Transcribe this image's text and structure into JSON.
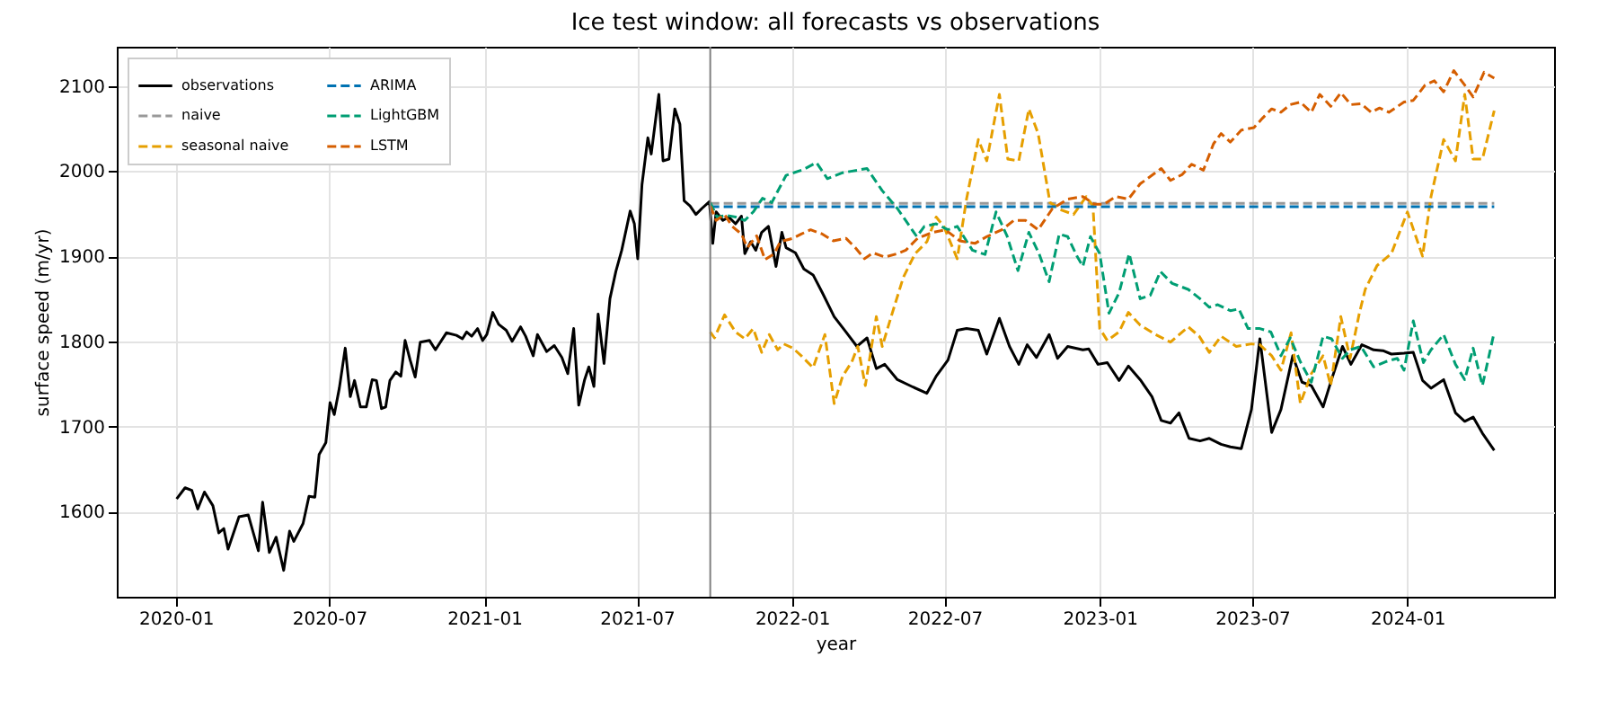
{
  "chart_data": {
    "type": "line",
    "title": "Ice test window: all forecasts vs observations",
    "xlabel": "year",
    "ylabel": "surface speed (m/yr)",
    "xlim": [
      "2019-10-23",
      "2024-06-23"
    ],
    "ylim": [
      1500,
      2146
    ],
    "xticks": [
      "2020-01",
      "2020-07",
      "2021-01",
      "2021-07",
      "2022-01",
      "2022-07",
      "2023-01",
      "2023-07",
      "2024-01"
    ],
    "yticks": [
      1600,
      1700,
      1800,
      1900,
      2000,
      2100
    ],
    "grid": true,
    "legend": "top left",
    "ref_lines": [
      {
        "axis": "x",
        "value": "2021-09-26",
        "label": null,
        "color": "#808080",
        "line_style": "solid"
      }
    ],
    "series": [
      {
        "name": "observations",
        "color": "#000000",
        "type": "line",
        "line_style": "solid",
        "x": [
          "2020-01-02",
          "2020-01-12",
          "2020-01-20",
          "2020-01-27",
          "2020-02-04",
          "2020-02-14",
          "2020-02-21",
          "2020-02-27",
          "2020-03-03",
          "2020-03-16",
          "2020-03-27",
          "2020-04-08",
          "2020-04-13",
          "2020-04-21",
          "2020-04-29",
          "2020-05-08",
          "2020-05-15",
          "2020-05-20",
          "2020-05-31",
          "2020-06-07",
          "2020-06-14",
          "2020-06-19",
          "2020-06-27",
          "2020-07-02",
          "2020-07-07",
          "2020-07-13",
          "2020-07-20",
          "2020-07-26",
          "2020-07-31",
          "2020-08-07",
          "2020-08-14",
          "2020-08-21",
          "2020-08-26",
          "2020-09-01",
          "2020-09-06",
          "2020-09-11",
          "2020-09-18",
          "2020-09-24",
          "2020-09-29",
          "2020-10-05",
          "2020-10-11",
          "2020-10-17",
          "2020-10-28",
          "2020-11-04",
          "2020-11-17",
          "2020-11-29",
          "2020-12-06",
          "2020-12-11",
          "2020-12-17",
          "2020-12-24",
          "2020-12-30",
          "2021-01-04",
          "2021-01-11",
          "2021-01-18",
          "2021-01-27",
          "2021-02-03",
          "2021-02-13",
          "2021-02-19",
          "2021-02-28",
          "2021-03-05",
          "2021-03-16",
          "2021-03-25",
          "2021-04-03",
          "2021-04-10",
          "2021-04-17",
          "2021-04-23",
          "2021-04-30",
          "2021-05-05",
          "2021-05-11",
          "2021-05-16",
          "2021-05-23",
          "2021-05-30",
          "2021-06-06",
          "2021-06-13",
          "2021-06-23",
          "2021-06-28",
          "2021-07-02",
          "2021-07-07",
          "2021-07-14",
          "2021-07-18",
          "2021-07-27",
          "2021-08-01",
          "2021-08-08",
          "2021-08-15",
          "2021-08-21",
          "2021-08-26",
          "2021-09-02",
          "2021-09-09",
          "2021-09-16",
          "2021-09-25",
          "2021-09-29",
          "2021-10-03",
          "2021-10-11",
          "2021-10-18",
          "2021-10-26",
          "2021-11-02",
          "2021-11-06",
          "2021-11-13",
          "2021-11-19",
          "2021-11-26",
          "2021-12-04",
          "2021-12-13",
          "2021-12-20",
          "2021-12-25",
          "2022-01-05",
          "2022-01-15",
          "2022-01-26",
          "2022-02-06",
          "2022-02-20",
          "2022-03-06",
          "2022-03-19",
          "2022-03-31",
          "2022-04-11",
          "2022-04-21",
          "2022-05-06",
          "2022-05-23",
          "2022-06-10",
          "2022-06-21",
          "2022-07-05",
          "2022-07-16",
          "2022-07-27",
          "2022-08-10",
          "2022-08-20",
          "2022-09-04",
          "2022-09-16",
          "2022-09-27",
          "2022-10-07",
          "2022-10-18",
          "2022-11-02",
          "2022-11-12",
          "2022-11-24",
          "2022-12-12",
          "2022-12-19",
          "2022-12-30",
          "2023-01-10",
          "2023-01-24",
          "2023-02-04",
          "2023-02-18",
          "2023-03-04",
          "2023-03-15",
          "2023-03-26",
          "2023-04-05",
          "2023-04-17",
          "2023-04-30",
          "2023-05-11",
          "2023-05-25",
          "2023-06-05",
          "2023-06-18",
          "2023-06-30",
          "2023-07-10",
          "2023-07-24",
          "2023-08-04",
          "2023-08-18",
          "2023-08-29",
          "2023-09-09",
          "2023-09-23",
          "2023-10-03",
          "2023-10-16",
          "2023-10-26",
          "2023-11-08",
          "2023-11-22",
          "2023-12-03",
          "2023-12-13",
          "2023-12-28",
          "2024-01-08",
          "2024-01-19",
          "2024-01-29",
          "2024-02-13",
          "2024-02-27",
          "2024-03-09",
          "2024-03-19",
          "2024-03-30",
          "2024-04-13"
        ],
        "values": [
          1615,
          1628,
          1625,
          1603,
          1623,
          1607,
          1575,
          1580,
          1556,
          1594,
          1596,
          1554,
          1611,
          1552,
          1570,
          1531,
          1577,
          1565,
          1586,
          1618,
          1617,
          1667,
          1681,
          1728,
          1714,
          1745,
          1792,
          1735,
          1754,
          1723,
          1723,
          1755,
          1754,
          1721,
          1723,
          1754,
          1764,
          1759,
          1801,
          1778,
          1758,
          1799,
          1801,
          1790,
          1810,
          1807,
          1803,
          1811,
          1806,
          1815,
          1801,
          1808,
          1834,
          1820,
          1813,
          1800,
          1817,
          1806,
          1783,
          1808,
          1788,
          1795,
          1781,
          1762,
          1815,
          1725,
          1755,
          1770,
          1747,
          1832,
          1774,
          1850,
          1882,
          1907,
          1953,
          1938,
          1897,
          1984,
          2039,
          2020,
          2090,
          2012,
          2014,
          2073,
          2055,
          1965,
          1959,
          1949,
          1956,
          1964,
          1915,
          1952,
          1942,
          1946,
          1938,
          1947,
          1903,
          1917,
          1907,
          1928,
          1935,
          1888,
          1928,
          1910,
          1904,
          1885,
          1878,
          1857,
          1829,
          1811,
          1794,
          1804,
          1768,
          1773,
          1755,
          1747,
          1739,
          1759,
          1778,
          1813,
          1815,
          1813,
          1785,
          1827,
          1794,
          1773,
          1796,
          1781,
          1808,
          1780,
          1794,
          1790,
          1791,
          1773,
          1775,
          1754,
          1771,
          1755,
          1735,
          1707,
          1704,
          1716,
          1686,
          1683,
          1686,
          1679,
          1676,
          1674,
          1720,
          1803,
          1693,
          1720,
          1783,
          1752,
          1748,
          1723,
          1755,
          1794,
          1773,
          1796,
          1790,
          1789,
          1785,
          1786,
          1787,
          1754,
          1745,
          1755,
          1716,
          1706,
          1711,
          1692,
          1672
        ]
      },
      {
        "name": "naive",
        "color": "#999999",
        "type": "line",
        "line_style": "dashed",
        "x": [
          "2021-09-26",
          "2024-04-13"
        ],
        "values": [
          1962,
          1962
        ]
      },
      {
        "name": "seasonal naive",
        "color": "#e69f00",
        "type": "line",
        "line_style": "dashed",
        "x": [
          "2021-09-26",
          "2021-10-01",
          "2021-10-13",
          "2021-10-26",
          "2021-11-06",
          "2021-11-16",
          "2021-11-26",
          "2021-12-05",
          "2021-12-15",
          "2021-12-22",
          "2022-01-02",
          "2022-01-12",
          "2022-01-26",
          "2022-02-09",
          "2022-02-20",
          "2022-03-02",
          "2022-03-13",
          "2022-03-20",
          "2022-03-29",
          "2022-04-11",
          "2022-04-18",
          "2022-04-28",
          "2022-05-13",
          "2022-05-27",
          "2022-06-10",
          "2022-06-21",
          "2022-06-30",
          "2022-07-16",
          "2022-07-27",
          "2022-08-10",
          "2022-08-20",
          "2022-09-04",
          "2022-09-14",
          "2022-09-27",
          "2022-10-09",
          "2022-10-20",
          "2022-11-03",
          "2022-11-17",
          "2022-12-01",
          "2022-12-16",
          "2022-12-24",
          "2023-01-01",
          "2023-01-10",
          "2023-01-24",
          "2023-02-04",
          "2023-02-18",
          "2023-03-08",
          "2023-03-26",
          "2023-04-16",
          "2023-04-29",
          "2023-05-11",
          "2023-05-25",
          "2023-06-12",
          "2023-06-30",
          "2023-07-10",
          "2023-07-24",
          "2023-08-04",
          "2023-08-16",
          "2023-08-27",
          "2023-09-09",
          "2023-09-23",
          "2023-10-02",
          "2023-10-14",
          "2023-10-25",
          "2023-11-05",
          "2023-11-12",
          "2023-11-26",
          "2023-12-13",
          "2024-01-01",
          "2024-01-19",
          "2024-01-29",
          "2024-02-13",
          "2024-02-27",
          "2024-03-09",
          "2024-03-19",
          "2024-03-30",
          "2024-04-13"
        ],
        "values": [
          1811,
          1804,
          1831,
          1811,
          1803,
          1815,
          1787,
          1808,
          1790,
          1797,
          1792,
          1783,
          1769,
          1808,
          1727,
          1759,
          1776,
          1794,
          1748,
          1829,
          1794,
          1827,
          1875,
          1903,
          1917,
          1946,
          1935,
          1897,
          1967,
          2037,
          2012,
          2090,
          2014,
          2012,
          2073,
          2044,
          1963,
          1954,
          1949,
          1970,
          1959,
          1815,
          1801,
          1811,
          1834,
          1819,
          1808,
          1799,
          1817,
          1806,
          1787,
          1806,
          1794,
          1797,
          1796,
          1783,
          1766,
          1810,
          1727,
          1762,
          1783,
          1748,
          1829,
          1780,
          1833,
          1861,
          1889,
          1903,
          1952,
          1900,
          1970,
          2037,
          2012,
          2090,
          2014,
          2014,
          2071
        ]
      },
      {
        "name": "ARIMA",
        "color": "#0072b2",
        "type": "line",
        "line_style": "dashed",
        "x": [
          "2021-09-26",
          "2024-04-13"
        ],
        "values": [
          1958,
          1958
        ]
      },
      {
        "name": "LightGBM",
        "color": "#009e73",
        "type": "line",
        "line_style": "dashed",
        "x": [
          "2021-09-26",
          "2021-10-04",
          "2021-10-15",
          "2021-10-26",
          "2021-11-06",
          "2021-11-16",
          "2021-11-27",
          "2021-12-08",
          "2021-12-25",
          "2022-01-15",
          "2022-01-30",
          "2022-02-12",
          "2022-03-02",
          "2022-03-31",
          "2022-04-18",
          "2022-05-06",
          "2022-05-29",
          "2022-06-07",
          "2022-06-21",
          "2022-07-05",
          "2022-07-16",
          "2022-08-03",
          "2022-08-18",
          "2022-08-31",
          "2022-09-13",
          "2022-09-26",
          "2022-10-09",
          "2022-10-21",
          "2022-11-02",
          "2022-11-14",
          "2022-11-24",
          "2022-12-05",
          "2022-12-12",
          "2022-12-21",
          "2023-01-01",
          "2023-01-12",
          "2023-01-24",
          "2023-02-05",
          "2023-02-18",
          "2023-03-02",
          "2023-03-14",
          "2023-03-28",
          "2023-04-16",
          "2023-04-30",
          "2023-05-11",
          "2023-05-21",
          "2023-06-05",
          "2023-06-15",
          "2023-06-26",
          "2023-07-10",
          "2023-07-23",
          "2023-08-04",
          "2023-08-15",
          "2023-08-27",
          "2023-09-09",
          "2023-09-23",
          "2023-10-03",
          "2023-10-16",
          "2023-10-25",
          "2023-11-07",
          "2023-11-22",
          "2023-12-06",
          "2023-12-20",
          "2023-12-28",
          "2024-01-08",
          "2024-01-20",
          "2024-01-29",
          "2024-02-13",
          "2024-02-27",
          "2024-03-09",
          "2024-03-19",
          "2024-03-30",
          "2024-04-13"
        ],
        "values": [
          1963,
          1946,
          1948,
          1946,
          1942,
          1952,
          1968,
          1963,
          1995,
          2002,
          2010,
          1991,
          1998,
          2003,
          1977,
          1956,
          1923,
          1935,
          1938,
          1931,
          1935,
          1907,
          1902,
          1952,
          1924,
          1883,
          1928,
          1903,
          1870,
          1926,
          1923,
          1900,
          1888,
          1923,
          1903,
          1833,
          1857,
          1903,
          1850,
          1854,
          1882,
          1868,
          1861,
          1850,
          1840,
          1843,
          1836,
          1838,
          1815,
          1815,
          1811,
          1783,
          1804,
          1776,
          1752,
          1806,
          1803,
          1780,
          1790,
          1794,
          1770,
          1776,
          1780,
          1766,
          1824,
          1775,
          1790,
          1808,
          1773,
          1755,
          1792,
          1748,
          1811
        ]
      },
      {
        "name": "LSTM",
        "color": "#d55e00",
        "type": "line",
        "line_style": "dashed",
        "x": [
          "2021-09-26",
          "2021-10-03",
          "2021-10-13",
          "2021-10-22",
          "2021-11-02",
          "2021-11-09",
          "2021-11-20",
          "2021-11-30",
          "2021-12-11",
          "2021-12-18",
          "2022-01-02",
          "2022-01-12",
          "2022-01-23",
          "2022-02-06",
          "2022-02-19",
          "2022-03-06",
          "2022-03-17",
          "2022-03-28",
          "2022-04-07",
          "2022-04-21",
          "2022-05-06",
          "2022-05-16",
          "2022-05-30",
          "2022-06-17",
          "2022-07-02",
          "2022-07-19",
          "2022-08-06",
          "2022-08-20",
          "2022-09-07",
          "2022-09-21",
          "2022-10-05",
          "2022-10-20",
          "2022-11-06",
          "2022-11-24",
          "2022-12-12",
          "2022-12-26",
          "2023-01-06",
          "2023-01-20",
          "2023-02-04",
          "2023-02-18",
          "2023-03-04",
          "2023-03-15",
          "2023-03-26",
          "2023-04-09",
          "2023-04-20",
          "2023-05-04",
          "2023-05-16",
          "2023-05-25",
          "2023-06-05",
          "2023-06-18",
          "2023-07-03",
          "2023-07-13",
          "2023-07-24",
          "2023-08-04",
          "2023-08-15",
          "2023-08-27",
          "2023-09-09",
          "2023-09-19",
          "2023-10-02",
          "2023-10-14",
          "2023-10-26",
          "2023-11-07",
          "2023-11-19",
          "2023-11-29",
          "2023-12-10",
          "2023-12-28",
          "2024-01-08",
          "2024-01-22",
          "2024-02-02",
          "2024-02-13",
          "2024-02-25",
          "2024-03-09",
          "2024-03-19",
          "2024-04-01",
          "2024-04-13"
        ],
        "values": [
          1959,
          1942,
          1949,
          1935,
          1926,
          1910,
          1924,
          1896,
          1903,
          1917,
          1921,
          1926,
          1931,
          1926,
          1918,
          1921,
          1910,
          1897,
          1904,
          1899,
          1903,
          1907,
          1921,
          1928,
          1931,
          1918,
          1915,
          1923,
          1931,
          1942,
          1942,
          1931,
          1956,
          1967,
          1970,
          1961,
          1961,
          1970,
          1967,
          1985,
          1995,
          2003,
          1989,
          1996,
          2008,
          2001,
          2032,
          2044,
          2034,
          2048,
          2051,
          2062,
          2073,
          2069,
          2078,
          2081,
          2069,
          2090,
          2076,
          2092,
          2078,
          2079,
          2069,
          2074,
          2069,
          2081,
          2083,
          2101,
          2106,
          2093,
          2118,
          2101,
          2087,
          2116,
          2109
        ]
      }
    ]
  }
}
